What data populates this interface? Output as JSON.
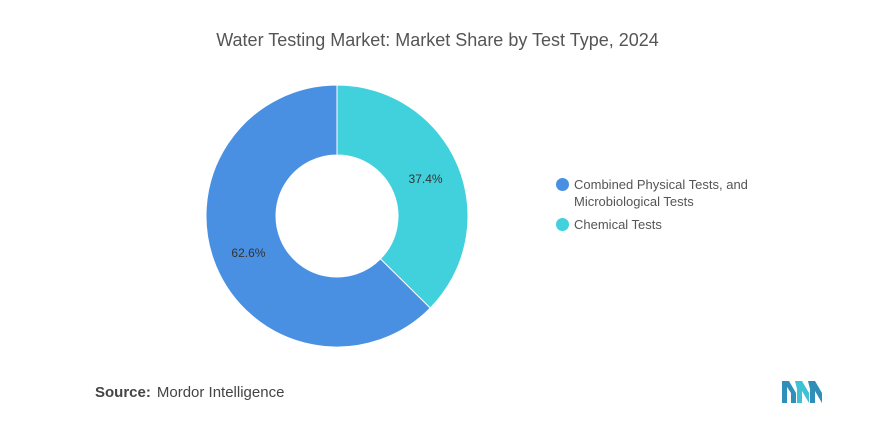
{
  "chart_data": {
    "type": "donut",
    "title": "Water Testing Market: Market Share by Test Type, 2024",
    "slices": [
      {
        "label": "Chemical Tests",
        "value": 37.4,
        "display": "37.4%",
        "color": "#41d1dc"
      },
      {
        "label": "Combined Physical Tests, and Microbiological Tests",
        "value": 62.6,
        "display": "62.6%",
        "color": "#4a90e2"
      }
    ],
    "legend": {
      "position": "right",
      "items": [
        {
          "label": "Combined Physical Tests, and Microbiological Tests",
          "color": "#4a90e2"
        },
        {
          "label": "Chemical Tests",
          "color": "#41d1dc"
        }
      ]
    }
  },
  "source": {
    "label": "Source:",
    "value": "Mordor Intelligence"
  },
  "logo": {
    "icon": "mordor-intelligence-logo-icon",
    "color": "#2f8fb8"
  }
}
